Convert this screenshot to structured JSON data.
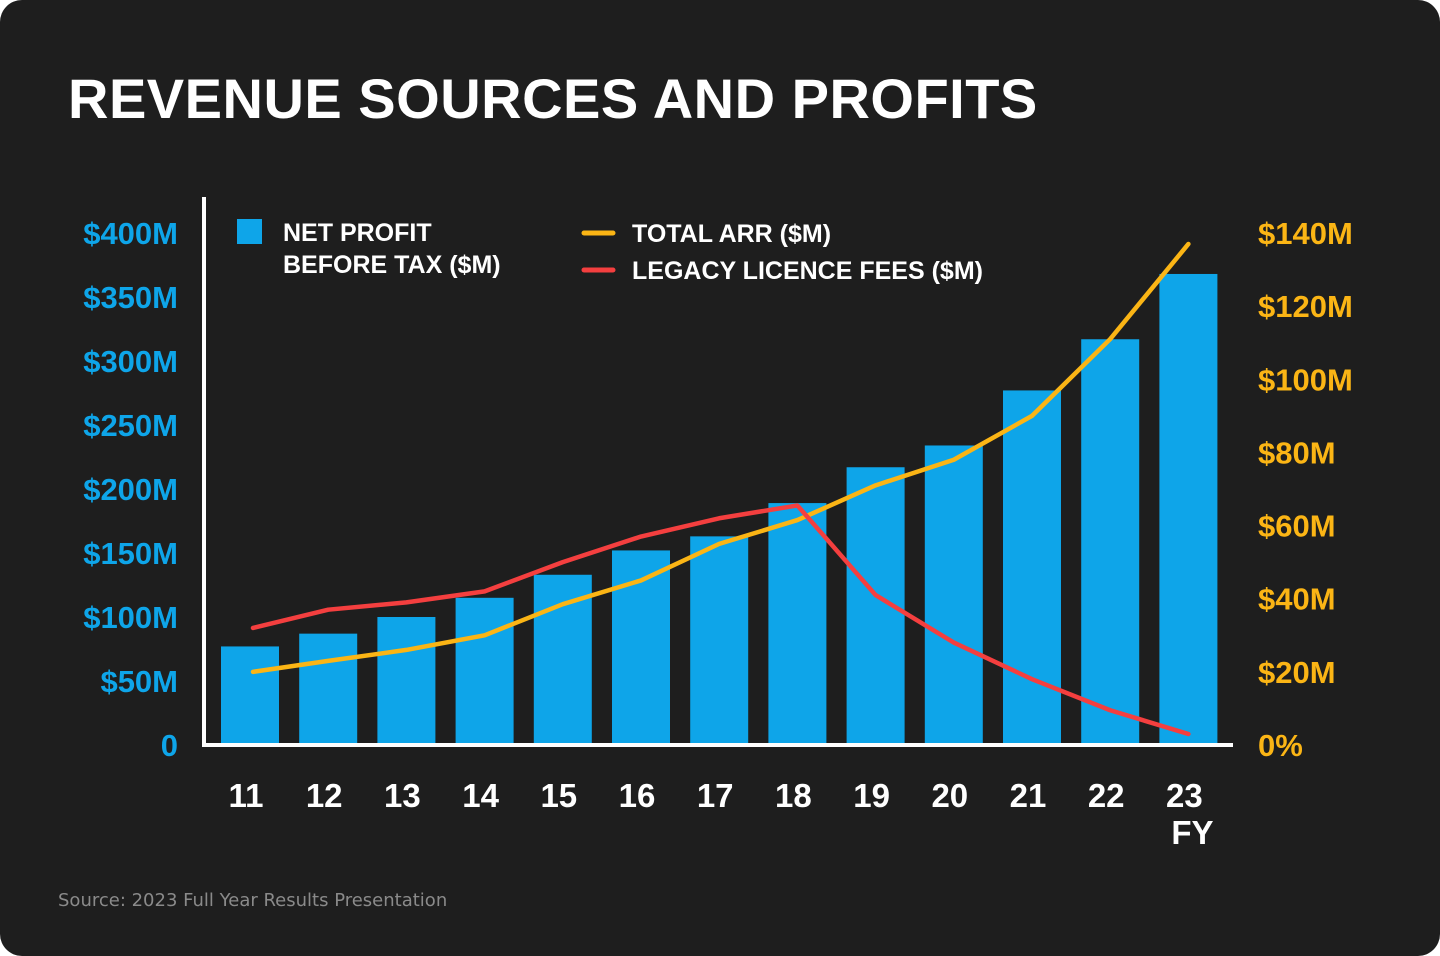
{
  "title": "REVENUE SOURCES AND PROFITS",
  "source": "Source: 2023 Full Year Results Presentation",
  "chart_data": {
    "type": "bar+line",
    "title": "REVENUE SOURCES AND PROFITS",
    "categories": [
      "11",
      "12",
      "13",
      "14",
      "15",
      "16",
      "17",
      "18",
      "19",
      "20",
      "21",
      "22",
      "23"
    ],
    "x_suffix_label": "FY",
    "legend_placement": "top",
    "grid": false,
    "left_axis": {
      "ylim": [
        0,
        400
      ],
      "ticks": [
        0,
        50,
        100,
        150,
        200,
        250,
        300,
        350,
        400
      ],
      "tick_labels": [
        "0",
        "$50M",
        "$100M",
        "$150M",
        "$200M",
        "$250M",
        "$300M",
        "$350M",
        "$400M"
      ],
      "color": "#0ea5e9"
    },
    "right_axis": {
      "ylim": [
        0,
        140
      ],
      "ticks": [
        0,
        20,
        40,
        60,
        80,
        100,
        120,
        140
      ],
      "tick_labels": [
        "0%",
        "$20M",
        "$40M",
        "$60M",
        "$80M",
        "$100M",
        "$120M",
        "$140M"
      ],
      "color": "#fbb515"
    },
    "series": [
      {
        "name": "NET PROFIT BEFORE TAX ($M)",
        "legend_lines": [
          "NET PROFIT",
          "BEFORE TAX ($M)"
        ],
        "type": "bar",
        "axis": "left",
        "color": "#0ea5e9",
        "values": [
          77,
          87,
          100,
          115,
          133,
          152,
          163,
          189,
          217,
          234,
          277,
          317,
          368
        ]
      },
      {
        "name": "TOTAL ARR ($M)",
        "type": "line",
        "axis": "right",
        "color": "#fbb515",
        "values": [
          20,
          23,
          26,
          30,
          38.5,
          45,
          55,
          61.5,
          71,
          78,
          90,
          111,
          137
        ]
      },
      {
        "name": "LEGACY LICENCE FEES ($M)",
        "type": "line",
        "axis": "right",
        "color": "#f43f3f",
        "values": [
          32,
          37,
          39,
          42,
          50,
          57,
          62,
          65.5,
          41,
          28,
          18,
          9.5,
          3
        ]
      }
    ]
  }
}
